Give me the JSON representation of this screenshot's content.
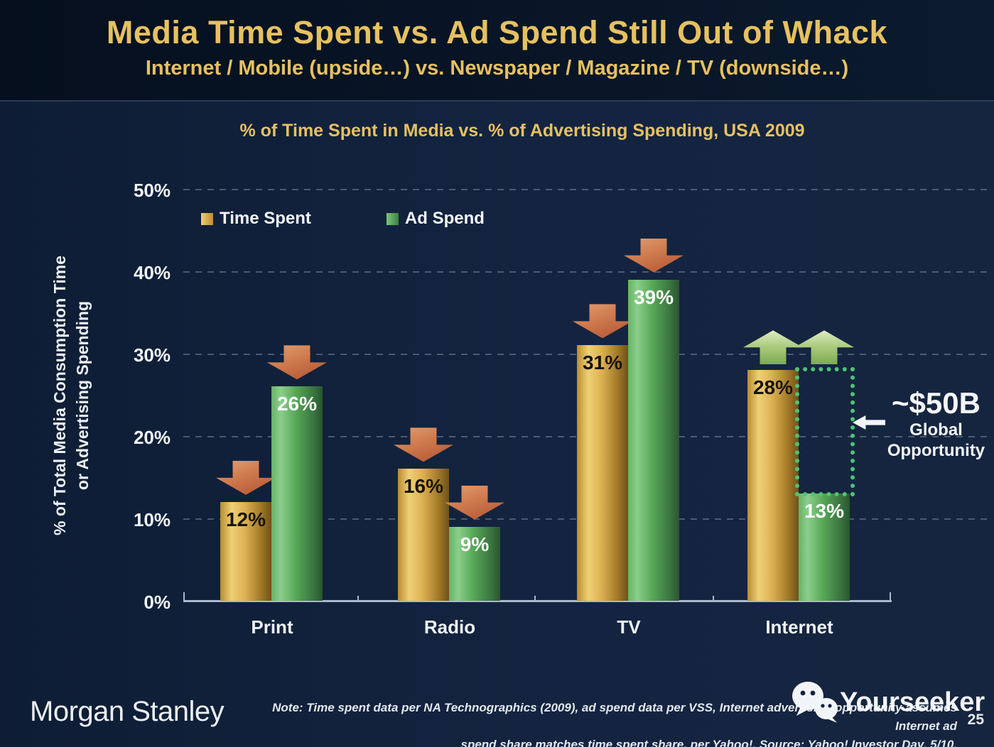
{
  "slide": {
    "title": "Media Time Spent vs. Ad Spend Still Out of Whack",
    "subtitle": "Internet / Mobile (upside…) vs. Newspaper / Magazine / TV (downside…)",
    "page_number": "25"
  },
  "chart_data": {
    "type": "bar",
    "title": "% of Time Spent in Media vs. % of Advertising Spending, USA 2009",
    "ylabel": "% of Total Media Consumption Time or Advertising Spending",
    "ylabel_lines": [
      "% of Total Media Consumption Time",
      "or Advertising Spending"
    ],
    "xlabel": "",
    "categories": [
      "Print",
      "Radio",
      "TV",
      "Internet"
    ],
    "series": [
      {
        "name": "Time Spent",
        "color": "#D9AC4A",
        "values": [
          12,
          16,
          31,
          28
        ]
      },
      {
        "name": "Ad Spend",
        "color": "#5BAE5B",
        "values": [
          26,
          9,
          39,
          13
        ]
      }
    ],
    "value_suffix": "%",
    "ylim": [
      0,
      50
    ],
    "yticks": [
      "0%",
      "10%",
      "20%",
      "30%",
      "40%",
      "50%"
    ],
    "grid": "horizontal-dashed",
    "legend_position": "top-left-inside",
    "trend_arrows": [
      "down",
      "down",
      "down",
      "up"
    ],
    "opportunity_box": {
      "category": "Internet",
      "series": "Ad Spend",
      "from_pct": 13,
      "to_pct": 28
    }
  },
  "annotation": {
    "value": "~$50B",
    "line1": "Global",
    "line2": "Opportunity"
  },
  "footer": {
    "brand": "Morgan Stanley",
    "note_line1": "Note: Time spent data per NA Technographics (2009), ad spend data per VSS, Internet advertising opportunity assumes Internet ad",
    "note_line2": "spend share matches time spent share, per Yahoo!. Source: Yahoo! Investor Day, 5/10.",
    "watermark": "Yourseeker"
  },
  "colors": {
    "background": "#142440",
    "header_background": "#081528",
    "title_gold": "#E6C161",
    "text_white": "#F2F5F8",
    "bar_gold": "#D9AC4A",
    "bar_green": "#5BAE5B",
    "arrow_down": "#C9714A",
    "arrow_up": "#A8C878",
    "opportunity_green": "#4EC473",
    "gridline": "#8EA0B8",
    "axis_line": "#A9B8CB"
  }
}
